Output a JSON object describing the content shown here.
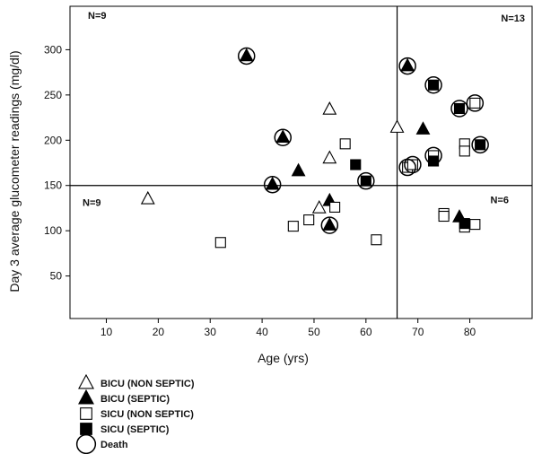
{
  "chart_data": {
    "type": "scatter",
    "xlabel": "Age (yrs)",
    "ylabel": "Day 3 average glucometer readings (mg/dl)",
    "xlim": [
      3,
      92
    ],
    "ylim": [
      3,
      348
    ],
    "xticks": [
      10,
      20,
      30,
      40,
      50,
      60,
      70,
      80
    ],
    "yticks": [
      50,
      100,
      150,
      200,
      250,
      300
    ],
    "reference_lines": {
      "x": 66,
      "y": 150
    },
    "quadrant_labels": [
      {
        "text": "N=9",
        "corner": "top-left"
      },
      {
        "text": "N=13",
        "corner": "top-right"
      },
      {
        "text": "N=9",
        "corner": "bottom-left"
      },
      {
        "text": "N=6",
        "corner": "bottom-right"
      }
    ],
    "legend_placement": "below-left",
    "series": [
      {
        "name": "BICU (NON SEPTIC)",
        "marker": "triangle-open",
        "points": [
          {
            "x": 18,
            "y": 135
          },
          {
            "x": 53,
            "y": 234
          },
          {
            "x": 53,
            "y": 180
          },
          {
            "x": 51,
            "y": 125
          },
          {
            "x": 66,
            "y": 214
          }
        ]
      },
      {
        "name": "BICU (SEPTIC)",
        "marker": "triangle-filled",
        "points": [
          {
            "x": 37,
            "y": 293
          },
          {
            "x": 42,
            "y": 151
          },
          {
            "x": 44,
            "y": 203
          },
          {
            "x": 47,
            "y": 166
          },
          {
            "x": 53,
            "y": 133
          },
          {
            "x": 53,
            "y": 106
          },
          {
            "x": 68,
            "y": 282
          },
          {
            "x": 71,
            "y": 212
          },
          {
            "x": 78,
            "y": 115
          }
        ]
      },
      {
        "name": "SICU (NON SEPTIC)",
        "marker": "square-open",
        "points": [
          {
            "x": 32,
            "y": 87
          },
          {
            "x": 46,
            "y": 105
          },
          {
            "x": 49,
            "y": 112
          },
          {
            "x": 54,
            "y": 126
          },
          {
            "x": 56,
            "y": 196
          },
          {
            "x": 62,
            "y": 90
          },
          {
            "x": 68,
            "y": 170
          },
          {
            "x": 69,
            "y": 173
          },
          {
            "x": 73,
            "y": 183
          },
          {
            "x": 75,
            "y": 119
          },
          {
            "x": 75,
            "y": 116
          },
          {
            "x": 79,
            "y": 196
          },
          {
            "x": 79,
            "y": 188
          },
          {
            "x": 79,
            "y": 104
          },
          {
            "x": 81,
            "y": 107
          },
          {
            "x": 81,
            "y": 241
          }
        ]
      },
      {
        "name": "SICU (SEPTIC)",
        "marker": "square-filled",
        "points": [
          {
            "x": 58,
            "y": 173
          },
          {
            "x": 60,
            "y": 155
          },
          {
            "x": 73,
            "y": 177
          },
          {
            "x": 73,
            "y": 261
          },
          {
            "x": 78,
            "y": 235
          },
          {
            "x": 79,
            "y": 108
          },
          {
            "x": 82,
            "y": 195
          }
        ]
      },
      {
        "name": "Death",
        "marker": "circle-open",
        "points": [
          {
            "x": 37,
            "y": 293
          },
          {
            "x": 42,
            "y": 151
          },
          {
            "x": 44,
            "y": 203
          },
          {
            "x": 53,
            "y": 106
          },
          {
            "x": 60,
            "y": 155
          },
          {
            "x": 68,
            "y": 282
          },
          {
            "x": 68,
            "y": 170
          },
          {
            "x": 69,
            "y": 173
          },
          {
            "x": 73,
            "y": 261
          },
          {
            "x": 73,
            "y": 183
          },
          {
            "x": 78,
            "y": 235
          },
          {
            "x": 81,
            "y": 241
          },
          {
            "x": 82,
            "y": 195
          }
        ]
      }
    ]
  }
}
